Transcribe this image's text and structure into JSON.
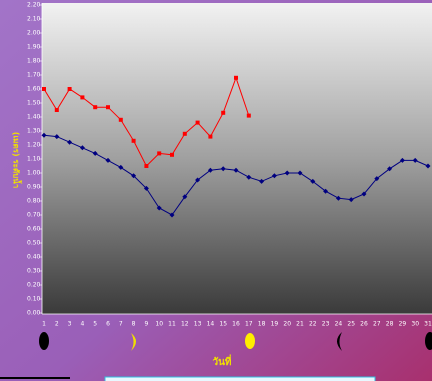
{
  "chart_data": {
    "type": "line",
    "x_label": "วันที่",
    "y_label": "(เมตร) ระดับน้ำ",
    "categories": [
      "1",
      "2",
      "3",
      "4",
      "5",
      "6",
      "7",
      "8",
      "9",
      "10",
      "11",
      "12",
      "13",
      "14",
      "15",
      "16",
      "17",
      "18",
      "19",
      "20",
      "21",
      "22",
      "23",
      "24",
      "25",
      "26",
      "27",
      "28",
      "29",
      "30",
      "31"
    ],
    "series": [
      {
        "color": "#ff0000",
        "marker": "square",
        "values": [
          1.6,
          1.45,
          1.6,
          1.54,
          1.47,
          1.47,
          1.38,
          1.23,
          1.05,
          1.14,
          1.13,
          1.28,
          1.36,
          1.26,
          1.43,
          1.68,
          1.41,
          null,
          null,
          null,
          null,
          null,
          null,
          null,
          null,
          null,
          null,
          null,
          null,
          null,
          null
        ]
      },
      {
        "color": "#000080",
        "marker": "diamond",
        "values": [
          1.27,
          1.26,
          1.22,
          1.18,
          1.14,
          1.09,
          1.04,
          0.98,
          0.89,
          0.75,
          0.7,
          0.83,
          0.95,
          1.02,
          1.03,
          1.02,
          0.97,
          0.94,
          0.98,
          1.0,
          1.0,
          0.94,
          0.87,
          0.82,
          0.81,
          0.85,
          0.96,
          1.03,
          1.09,
          1.09,
          1.05
        ]
      }
    ],
    "ylim": [
      0,
      2.2
    ],
    "yticks": [
      {
        "value": 0,
        "label": "0.00"
      },
      {
        "value": 0.1,
        "label": "0.10"
      },
      {
        "value": 0.2,
        "label": "0.20"
      },
      {
        "value": 0.3,
        "label": "0.30"
      },
      {
        "value": 0.4,
        "label": "0.40"
      },
      {
        "value": 0.5,
        "label": "0.50"
      },
      {
        "value": 0.6,
        "label": "0.60"
      },
      {
        "value": 0.7,
        "label": "0.70"
      },
      {
        "value": 0.8,
        "label": "0.80"
      },
      {
        "value": 0.9,
        "label": "0.90"
      },
      {
        "value": 1,
        "label": "1.00"
      },
      {
        "value": 1.1,
        "label": "1.10"
      },
      {
        "value": 1.2,
        "label": "1.20"
      },
      {
        "value": 1.3,
        "label": "1.30"
      },
      {
        "value": 1.4,
        "label": "1.40"
      },
      {
        "value": 1.5,
        "label": "1.50"
      },
      {
        "value": 1.6,
        "label": "1.60"
      },
      {
        "value": 1.7,
        "label": "1.70"
      },
      {
        "value": 1.8,
        "label": "1.80"
      },
      {
        "value": 1.9,
        "label": "1.90"
      },
      {
        "value": 2,
        "label": "2.00"
      },
      {
        "value": 2.1,
        "label": "2.10"
      },
      {
        "value": 2.2,
        "label": "2.20"
      }
    ],
    "grid": false
  }
}
